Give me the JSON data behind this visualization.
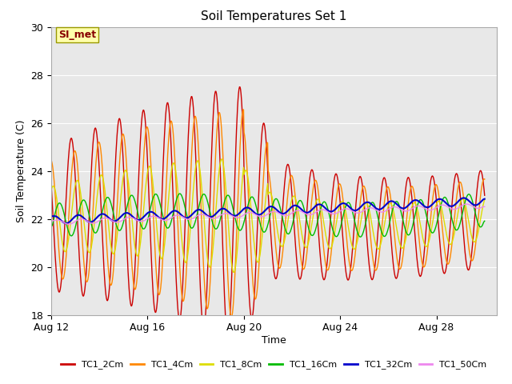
{
  "title": "Soil Temperatures Set 1",
  "xlabel": "Time",
  "ylabel": "Soil Temperature (C)",
  "ylim": [
    18,
    30
  ],
  "yticks": [
    18,
    20,
    22,
    24,
    26,
    28,
    30
  ],
  "xtick_labels": [
    "Aug 12",
    "Aug 16",
    "Aug 20",
    "Aug 24",
    "Aug 28"
  ],
  "xtick_days": [
    0,
    4,
    8,
    12,
    16
  ],
  "xlim_days": [
    0,
    18.5
  ],
  "annotation_text": "SI_met",
  "series": [
    {
      "label": "TC1_2Cm",
      "color": "#cc0000",
      "lw": 1.0
    },
    {
      "label": "TC1_4Cm",
      "color": "#ff8800",
      "lw": 1.0
    },
    {
      "label": "TC1_8Cm",
      "color": "#dddd00",
      "lw": 1.0
    },
    {
      "label": "TC1_16Cm",
      "color": "#00bb00",
      "lw": 1.0
    },
    {
      "label": "TC1_32Cm",
      "color": "#0000cc",
      "lw": 1.5
    },
    {
      "label": "TC1_50Cm",
      "color": "#ee88ee",
      "lw": 1.0
    }
  ],
  "bg_color": "#e8e8e8",
  "grid_color": "#ffffff",
  "fig_bg": "#ffffff"
}
